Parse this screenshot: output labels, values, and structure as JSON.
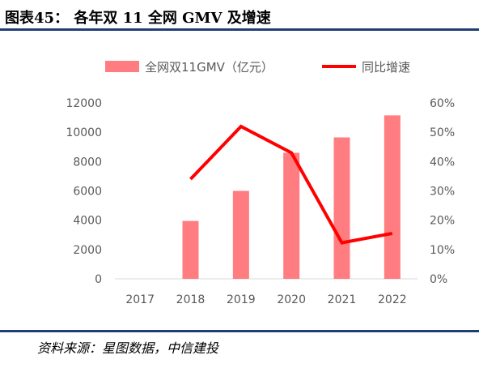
{
  "title": "图表45： 各年双 11 全网 GMV 及增速",
  "source": "资料来源：星图数据，中信建投",
  "colors": {
    "bar": "#ff7c80",
    "line": "#ff0000",
    "rule": "#1f3f73"
  },
  "chart_data": {
    "type": "bar",
    "categories": [
      "2017",
      "2018",
      "2019",
      "2020",
      "2021",
      "2022"
    ],
    "series": [
      {
        "name": "全网双11GMV（亿元）",
        "type": "bar",
        "axis": "left",
        "values": [
          null,
          3950,
          6000,
          8600,
          9650,
          11150
        ]
      },
      {
        "name": "同比增速",
        "type": "line",
        "axis": "right",
        "values": [
          null,
          0.34,
          0.52,
          0.43,
          0.123,
          0.155
        ]
      }
    ],
    "left_axis": {
      "ylim": [
        0,
        12000
      ],
      "ticks": [
        "0",
        "2000",
        "4000",
        "6000",
        "8000",
        "10000",
        "12000"
      ]
    },
    "right_axis": {
      "ylim": [
        0,
        0.6
      ],
      "ticks": [
        "0%",
        "10%",
        "20%",
        "30%",
        "40%",
        "50%",
        "60%"
      ]
    },
    "grid": false,
    "legend_position": "top"
  }
}
